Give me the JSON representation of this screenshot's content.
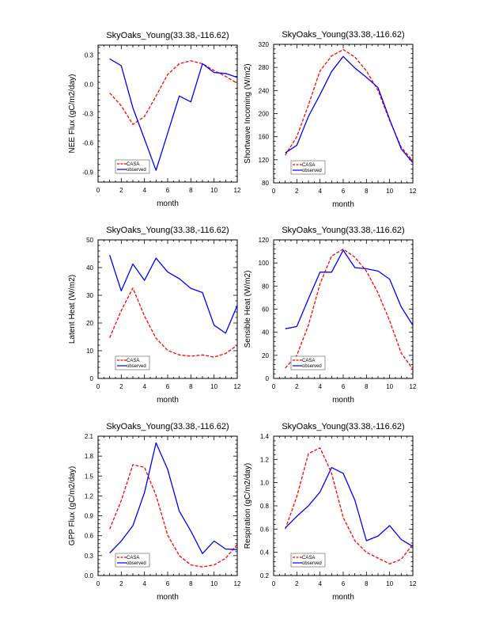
{
  "chart_data": [
    {
      "type": "line",
      "title": "SkyOaks_Young(33.38,-116.62)",
      "xlabel": "month",
      "ylabel": "NEE Flux (gC/m2/day)",
      "xlim": [
        0,
        12
      ],
      "ylim": [
        -1.0,
        0.4
      ],
      "xticks": [
        0,
        2,
        4,
        6,
        8,
        10,
        12
      ],
      "yticks": [
        -0.9,
        -0.6,
        -0.3,
        0.0,
        0.3
      ],
      "ytick_labels": [
        "-0.9",
        "-0.6",
        "-0.3",
        "0.0",
        "0.3"
      ],
      "legend": "bottom-left",
      "x": [
        1,
        2,
        3,
        4,
        5,
        6,
        7,
        8,
        9,
        10,
        11,
        12
      ],
      "series": [
        {
          "name": "CASA",
          "color": "#ff0000",
          "dashed": true,
          "values": [
            -0.09,
            -0.22,
            -0.41,
            -0.33,
            -0.12,
            0.1,
            0.21,
            0.24,
            0.21,
            0.14,
            0.08,
            0.01
          ]
        },
        {
          "name": "observed",
          "color": "#0000ff",
          "dashed": false,
          "values": [
            0.26,
            0.19,
            -0.24,
            -0.56,
            -0.88,
            -0.5,
            -0.12,
            -0.18,
            0.21,
            0.12,
            0.11,
            0.07
          ]
        }
      ]
    },
    {
      "type": "line",
      "title": "SkyOaks_Young(33.38,-116.62)",
      "xlabel": "month",
      "ylabel": "Shortwave Incoming (W/m2)",
      "xlim": [
        0,
        12
      ],
      "ylim": [
        80,
        320
      ],
      "xticks": [
        0,
        2,
        4,
        6,
        8,
        10,
        12
      ],
      "yticks": [
        80,
        120,
        160,
        200,
        240,
        280,
        320
      ],
      "ytick_labels": [
        "80",
        "120",
        "160",
        "200",
        "240",
        "280",
        "320"
      ],
      "legend": "bottom-left",
      "x": [
        1,
        2,
        3,
        4,
        5,
        6,
        7,
        8,
        9,
        10,
        11,
        12
      ],
      "series": [
        {
          "name": "CASA",
          "color": "#ff0000",
          "dashed": true,
          "values": [
            128,
            160,
            215,
            274,
            300,
            311,
            298,
            274,
            240,
            188,
            142,
            118
          ]
        },
        {
          "name": "observed",
          "color": "#0000ff",
          "dashed": false,
          "values": [
            132,
            145,
            195,
            233,
            273,
            299,
            279,
            263,
            245,
            190,
            139,
            115
          ]
        }
      ]
    },
    {
      "type": "line",
      "title": "SkyOaks_Young(33.38,-116.62)",
      "xlabel": "month",
      "ylabel": "Latent Heat (W/m2)",
      "xlim": [
        0,
        12
      ],
      "ylim": [
        0,
        50
      ],
      "xticks": [
        0,
        2,
        4,
        6,
        8,
        10,
        12
      ],
      "yticks": [
        0,
        10,
        20,
        30,
        40,
        50
      ],
      "ytick_labels": [
        "0",
        "10",
        "20",
        "30",
        "40",
        "50"
      ],
      "legend": "bottom-left",
      "x": [
        1,
        2,
        3,
        4,
        5,
        6,
        7,
        8,
        9,
        10,
        11,
        12
      ],
      "series": [
        {
          "name": "CASA",
          "color": "#ff0000",
          "dashed": true,
          "values": [
            14.7,
            24.5,
            32.6,
            22.5,
            14.5,
            10.1,
            8.5,
            8.0,
            8.5,
            7.7,
            9.0,
            12.0
          ]
        },
        {
          "name": "observed",
          "color": "#0000ff",
          "dashed": false,
          "values": [
            44.5,
            31.6,
            41.3,
            35.4,
            43.4,
            38.4,
            36.0,
            32.5,
            31.0,
            19.2,
            16.3,
            26.3
          ]
        }
      ]
    },
    {
      "type": "line",
      "title": "SkyOaks_Young(33.38,-116.62)",
      "xlabel": "month",
      "ylabel": "Sensible Heat (W/m2)",
      "xlim": [
        0,
        12
      ],
      "ylim": [
        0,
        120
      ],
      "xticks": [
        0,
        2,
        4,
        6,
        8,
        10,
        12
      ],
      "yticks": [
        0,
        20,
        40,
        60,
        80,
        100,
        120
      ],
      "ytick_labels": [
        "0",
        "20",
        "40",
        "60",
        "80",
        "100",
        "120"
      ],
      "legend": "bottom-left",
      "x": [
        1,
        2,
        3,
        4,
        5,
        6,
        7,
        8,
        9,
        10,
        11,
        12
      ],
      "series": [
        {
          "name": "CASA",
          "color": "#ff0000",
          "dashed": true,
          "values": [
            9,
            20,
            46,
            82,
            106,
            112,
            105,
            93,
            74,
            50,
            22,
            8
          ]
        },
        {
          "name": "observed",
          "color": "#0000ff",
          "dashed": false,
          "values": [
            43,
            45,
            69,
            92,
            92,
            111,
            96,
            95,
            93,
            86,
            62,
            46
          ]
        }
      ]
    },
    {
      "type": "line",
      "title": "SkyOaks_Young(33.38,-116.62)",
      "xlabel": "month",
      "ylabel": "GPP Flux (gC/m2/day)",
      "xlim": [
        0,
        12
      ],
      "ylim": [
        0.0,
        2.1
      ],
      "xticks": [
        0,
        2,
        4,
        6,
        8,
        10,
        12
      ],
      "yticks": [
        0.0,
        0.3,
        0.6,
        0.9,
        1.2,
        1.5,
        1.8,
        2.1
      ],
      "ytick_labels": [
        "0.0",
        "0.3",
        "0.6",
        "0.9",
        "1.2",
        "1.5",
        "1.8",
        "2.1"
      ],
      "legend": "bottom-left",
      "x": [
        1,
        2,
        3,
        4,
        5,
        6,
        7,
        8,
        9,
        10,
        11,
        12
      ],
      "series": [
        {
          "name": "CASA",
          "color": "#ff0000",
          "dashed": true,
          "values": [
            0.7,
            1.13,
            1.67,
            1.63,
            1.21,
            0.61,
            0.3,
            0.16,
            0.13,
            0.16,
            0.26,
            0.47
          ]
        },
        {
          "name": "observed",
          "color": "#0000ff",
          "dashed": false,
          "values": [
            0.34,
            0.52,
            0.75,
            1.25,
            2.0,
            1.6,
            0.97,
            0.67,
            0.33,
            0.52,
            0.4,
            0.39
          ]
        }
      ]
    },
    {
      "type": "line",
      "title": "SkyOaks_Young(33.38,-116.62)",
      "xlabel": "month",
      "ylabel": "Respiration (gC/m2/day)",
      "xlim": [
        0,
        12
      ],
      "ylim": [
        0.2,
        1.4
      ],
      "xticks": [
        0,
        2,
        4,
        6,
        8,
        10,
        12
      ],
      "yticks": [
        0.2,
        0.4,
        0.6,
        0.8,
        1.0,
        1.2,
        1.4
      ],
      "ytick_labels": [
        "0.2",
        "0.4",
        "0.6",
        "0.8",
        "1.0",
        "1.2",
        "1.4"
      ],
      "legend": "bottom-left",
      "x": [
        1,
        2,
        3,
        4,
        5,
        6,
        7,
        8,
        9,
        10,
        11,
        12
      ],
      "series": [
        {
          "name": "CASA",
          "color": "#ff0000",
          "dashed": true,
          "values": [
            0.6,
            0.88,
            1.25,
            1.3,
            1.08,
            0.7,
            0.5,
            0.4,
            0.35,
            0.3,
            0.34,
            0.47
          ]
        },
        {
          "name": "observed",
          "color": "#0000ff",
          "dashed": false,
          "values": [
            0.61,
            0.71,
            0.8,
            0.92,
            1.13,
            1.08,
            0.85,
            0.5,
            0.54,
            0.63,
            0.51,
            0.45
          ]
        }
      ]
    }
  ]
}
